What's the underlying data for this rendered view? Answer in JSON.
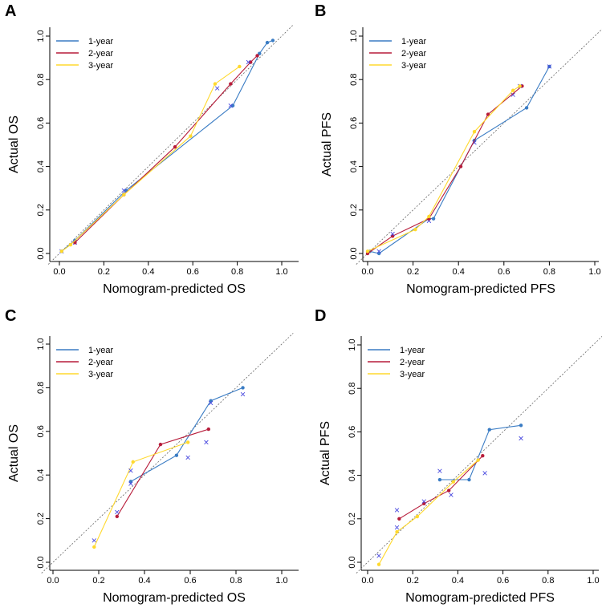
{
  "figure": {
    "colors": {
      "one_year": "#3a7cc4",
      "two_year": "#b71c3a",
      "three_year": "#ffd92e",
      "reference": "#666666",
      "cross": "#4a4adf"
    },
    "legend_labels": [
      "1-year",
      "2-year",
      "3-year"
    ]
  },
  "chart_data": [
    {
      "panel": "A",
      "type": "line",
      "title": "",
      "xlabel": "Nomogram-predicted OS",
      "ylabel": "Actual OS",
      "xlim": [
        0.0,
        1.0
      ],
      "ylim": [
        0.0,
        1.0
      ],
      "xticks": [
        "0.0",
        "0.2",
        "0.4",
        "0.6",
        "0.8",
        "1.0"
      ],
      "yticks": [
        "0.0",
        "0.2",
        "0.4",
        "0.6",
        "0.8",
        "1.0"
      ],
      "legend": "top-left",
      "series": [
        {
          "name": "1-year",
          "x": [
            0.01,
            0.07,
            0.3,
            0.78,
            0.9,
            0.935,
            0.96
          ],
          "y": [
            0.01,
            0.06,
            0.29,
            0.68,
            0.92,
            0.97,
            0.98
          ],
          "crosses_x": [
            0.01,
            0.07,
            0.29,
            0.71,
            0.77
          ],
          "crosses_y": [
            0.01,
            0.05,
            0.29,
            0.76,
            0.68
          ]
        },
        {
          "name": "2-year",
          "x": [
            0.07,
            0.29,
            0.52,
            0.77,
            0.86,
            0.89
          ],
          "y": [
            0.05,
            0.27,
            0.49,
            0.78,
            0.88,
            0.91
          ],
          "crosses_x": [
            0.85
          ],
          "crosses_y": [
            0.88
          ]
        },
        {
          "name": "3-year",
          "x": [
            0.01,
            0.05,
            0.29,
            0.59,
            0.7,
            0.81
          ],
          "y": [
            0.01,
            0.04,
            0.27,
            0.54,
            0.78,
            0.86
          ],
          "crosses_x": [],
          "crosses_y": []
        }
      ]
    },
    {
      "panel": "B",
      "type": "line",
      "title": "",
      "xlabel": "Nomogram-predicted PFS",
      "ylabel": "Actual PFS",
      "xlim": [
        0.0,
        1.0
      ],
      "ylim": [
        0.0,
        1.0
      ],
      "xticks": [
        "0.0",
        "0.2",
        "0.4",
        "0.6",
        "0.8",
        "1.0"
      ],
      "yticks": [
        "0.0",
        "0.2",
        "0.4",
        "0.6",
        "0.8",
        "1.0"
      ],
      "legend": "top-left",
      "series": [
        {
          "name": "1-year",
          "x": [
            0.01,
            0.05,
            0.27,
            0.29,
            0.47,
            0.7,
            0.8
          ],
          "y": [
            0.01,
            0.0,
            0.16,
            0.16,
            0.52,
            0.67,
            0.86
          ],
          "crosses_x": [
            0.05,
            0.27,
            0.47,
            0.64,
            0.8
          ],
          "crosses_y": [
            0.01,
            0.15,
            0.51,
            0.73,
            0.86
          ]
        },
        {
          "name": "2-year",
          "x": [
            0.0,
            0.11,
            0.27,
            0.41,
            0.53,
            0.68
          ],
          "y": [
            0.0,
            0.08,
            0.16,
            0.4,
            0.64,
            0.77
          ],
          "crosses_x": [
            0.11,
            0.67
          ],
          "crosses_y": [
            0.09,
            0.77
          ]
        },
        {
          "name": "3-year",
          "x": [
            0.0,
            0.21,
            0.27,
            0.47,
            0.64,
            0.67
          ],
          "y": [
            0.01,
            0.11,
            0.17,
            0.56,
            0.75,
            0.77
          ],
          "crosses_x": [],
          "crosses_y": []
        }
      ]
    },
    {
      "panel": "C",
      "type": "line",
      "title": "",
      "xlabel": "Nomogram-predicted OS",
      "ylabel": "Actual OS",
      "xlim": [
        0.0,
        1.0
      ],
      "ylim": [
        0.0,
        1.0
      ],
      "xticks": [
        "0.0",
        "0.2",
        "0.4",
        "0.6",
        "0.8",
        "1.0"
      ],
      "yticks": [
        "0.0",
        "0.2",
        "0.4",
        "0.6",
        "0.8",
        "1.0"
      ],
      "legend": "top-left",
      "series": [
        {
          "name": "1-year",
          "x": [
            0.34,
            0.54,
            0.69,
            0.83
          ],
          "y": [
            0.37,
            0.49,
            0.74,
            0.8
          ],
          "crosses_x": [
            0.18,
            0.34,
            0.59,
            0.69,
            0.83
          ],
          "crosses_y": [
            0.1,
            0.36,
            0.48,
            0.73,
            0.77
          ]
        },
        {
          "name": "2-year",
          "x": [
            0.28,
            0.47,
            0.68
          ],
          "y": [
            0.21,
            0.54,
            0.61
          ],
          "crosses_x": [
            0.28,
            0.67
          ],
          "crosses_y": [
            0.23,
            0.55
          ]
        },
        {
          "name": "3-year",
          "x": [
            0.18,
            0.35,
            0.59
          ],
          "y": [
            0.07,
            0.46,
            0.55
          ],
          "crosses_x": [
            0.34
          ],
          "crosses_y": [
            0.42
          ]
        }
      ]
    },
    {
      "panel": "D",
      "type": "line",
      "title": "",
      "xlabel": "Nomogram-predicted PFS",
      "ylabel": "Actual PFS",
      "xlim": [
        0.0,
        1.0
      ],
      "ylim": [
        0.0,
        1.0
      ],
      "xticks": [
        "0.0",
        "0.2",
        "0.4",
        "0.6",
        "0.8",
        "1.0"
      ],
      "yticks": [
        "0.0",
        "0.2",
        "0.4",
        "0.6",
        "0.8",
        "1.0"
      ],
      "legend": "top-left",
      "series": [
        {
          "name": "1-year",
          "x": [
            0.32,
            0.45,
            0.54,
            0.68
          ],
          "y": [
            0.38,
            0.38,
            0.61,
            0.63
          ],
          "crosses_x": [
            0.05,
            0.13,
            0.32,
            0.37,
            0.52,
            0.68
          ],
          "crosses_y": [
            0.03,
            0.24,
            0.42,
            0.31,
            0.41,
            0.57
          ]
        },
        {
          "name": "2-year",
          "x": [
            0.14,
            0.25,
            0.36,
            0.51
          ],
          "y": [
            0.2,
            0.27,
            0.33,
            0.49
          ],
          "crosses_x": [
            0.13,
            0.25
          ],
          "crosses_y": [
            0.16,
            0.28
          ]
        },
        {
          "name": "3-year",
          "x": [
            0.05,
            0.13,
            0.22,
            0.38,
            0.49
          ],
          "y": [
            -0.01,
            0.14,
            0.21,
            0.37,
            0.47
          ],
          "crosses_x": [],
          "crosses_y": []
        }
      ]
    }
  ]
}
